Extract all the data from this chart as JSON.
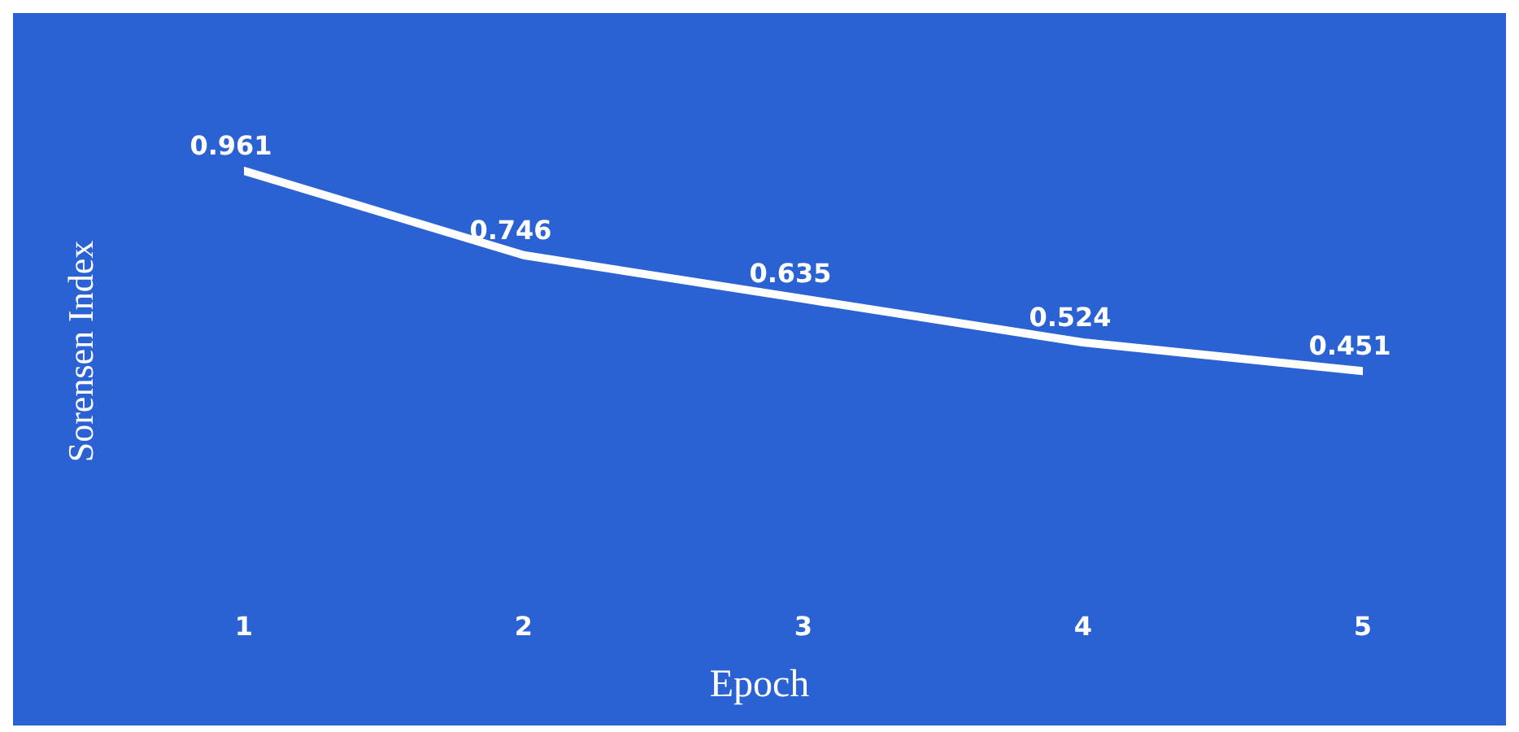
{
  "chart_data": {
    "type": "line",
    "xlabel": "Epoch",
    "ylabel": "Sorensen Index",
    "categories": [
      "1",
      "2",
      "3",
      "4",
      "5"
    ],
    "series": [
      {
        "color": "#ffffff",
        "values": [
          0.961,
          0.746,
          0.635,
          0.524,
          0.451
        ]
      }
    ],
    "data_labels": true,
    "grid": false,
    "legend": false,
    "marker": "none",
    "line_style": "solid"
  }
}
